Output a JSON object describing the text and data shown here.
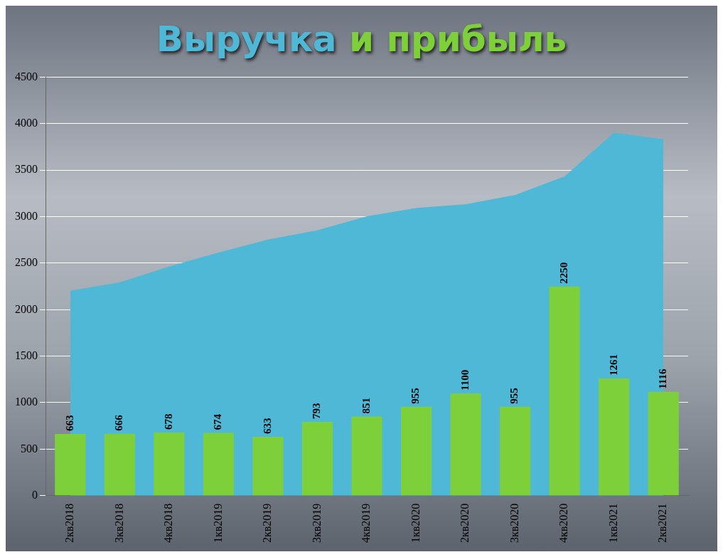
{
  "chart_data": {
    "type": "bar",
    "title": "Выручка и прибыль",
    "categories": [
      "2кв2018",
      "3кв2018",
      "4кв2018",
      "1кв2019",
      "2кв2019",
      "3кв2019",
      "4кв2019",
      "1кв2020",
      "2кв2020",
      "3кв2020",
      "4кв2020",
      "1кв2021",
      "2кв2021"
    ],
    "series": [
      {
        "type": "area",
        "color": "#4fb8d6",
        "values": [
          2200,
          2290,
          2460,
          2610,
          2750,
          2850,
          3000,
          3090,
          3130,
          3230,
          3430,
          3900,
          3830
        ]
      },
      {
        "color": "#7ed03a",
        "values": [
          663,
          666,
          678,
          674,
          633,
          793,
          851,
          955,
          1100,
          955,
          2250,
          1261,
          1116
        ],
        "value_labels": [
          "663",
          "666",
          "678",
          "674",
          "633",
          "793",
          "851",
          "955",
          "1100",
          "955",
          "2250",
          "1261",
          "1116"
        ]
      }
    ],
    "ylim": [
      0,
      4500
    ],
    "yticks": [
      0,
      500,
      1000,
      1500,
      2000,
      2500,
      3000,
      3500,
      4000,
      4500
    ],
    "grid": "y",
    "legend": false
  }
}
